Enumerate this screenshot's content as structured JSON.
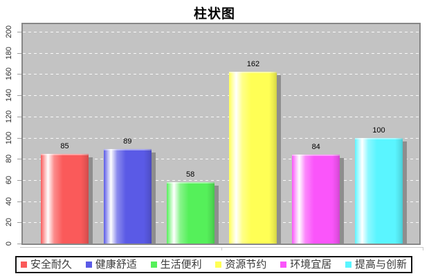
{
  "chart_data": {
    "type": "bar",
    "title": "柱状图",
    "categories": [
      "安全耐久",
      "健康舒适",
      "生活便利",
      "资源节约",
      "环境宜居",
      "提高与创新"
    ],
    "values": [
      85,
      89,
      58,
      162,
      84,
      100
    ],
    "bar_colors": [
      "#fa5a5a",
      "#5a5ae6",
      "#55f05a",
      "#ffff55",
      "#fa55fa",
      "#5af5ff"
    ],
    "shadow_color": "#8e8e8e",
    "plot_background": "#c3c3c3",
    "xlabel": "",
    "ylabel": "",
    "ylim": [
      0,
      200
    ],
    "y_tick_step": 20,
    "y_tick_labels": [
      "0",
      "20",
      "40",
      "60",
      "80",
      "100",
      "120",
      "140",
      "160",
      "180",
      "200"
    ],
    "grid": "horizontal-dashed-white",
    "legend_position": "bottom",
    "value_labels_shown": true
  }
}
